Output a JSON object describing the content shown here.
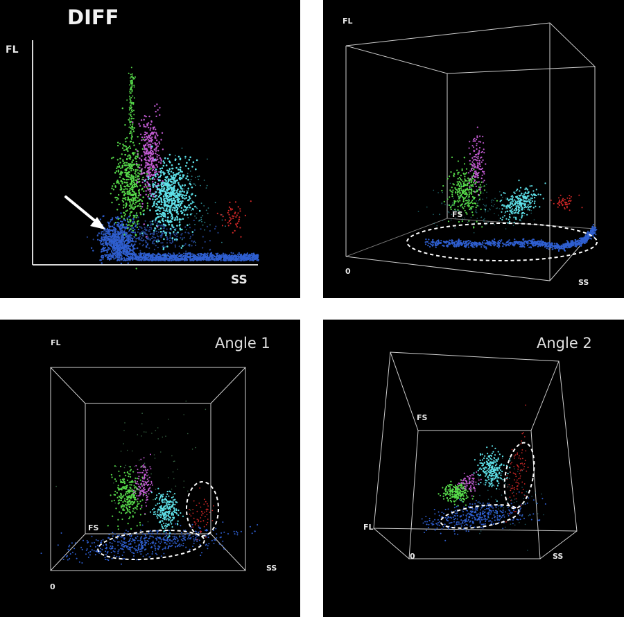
{
  "panels": {
    "top_left": {
      "title": "DIFF",
      "fl": "FL",
      "ss": "SS"
    },
    "top_right": {
      "fl": "FL",
      "fs": "FS",
      "zero": "0",
      "ss": "SS"
    },
    "bottom_left": {
      "title": "Angle 1",
      "fl": "FL",
      "fs": "FS",
      "zero": "0",
      "ss": "SS"
    },
    "bottom_right": {
      "title": "Angle 2",
      "fs": "FS",
      "fl": "FL",
      "zero": "0",
      "ss": "SS"
    }
  },
  "colors": {
    "background": "#000000",
    "axis": "#d8d8d8",
    "debris_blue": "#2f5fd0",
    "green": "#56d94a",
    "magenta": "#c05ad0",
    "cyan": "#5ee0e8",
    "red": "#d02828",
    "dashed_outline": "#ffffff"
  }
}
